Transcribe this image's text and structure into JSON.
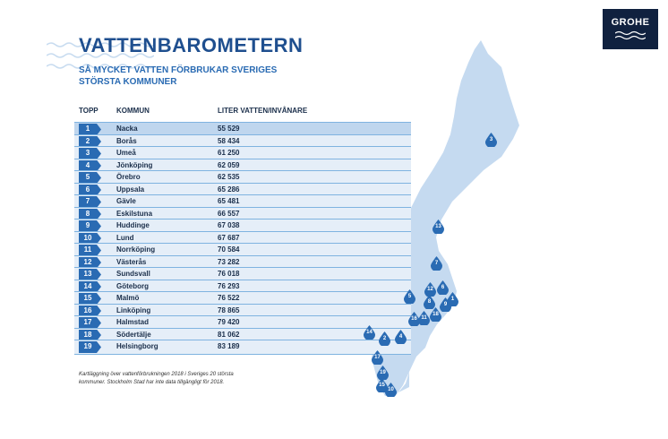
{
  "title": "VATTENBAROMETERN",
  "subtitle": "SÅ MYCKET VATTEN FÖRBRUKAR SVERIGES STÖRSTA KOMMUNER",
  "logo": "GROHE",
  "columns": {
    "top": "TOPP",
    "kommun": "KOMMUN",
    "liter": "LITER VATTEN/INVÅNARE"
  },
  "rows": [
    {
      "rank": "1",
      "city": "Nacka",
      "value": "55 529"
    },
    {
      "rank": "2",
      "city": "Borås",
      "value": "58 434"
    },
    {
      "rank": "3",
      "city": "Umeå",
      "value": "61 250"
    },
    {
      "rank": "4",
      "city": "Jönköping",
      "value": "62 059"
    },
    {
      "rank": "5",
      "city": "Örebro",
      "value": "62 535"
    },
    {
      "rank": "6",
      "city": "Uppsala",
      "value": "65 286"
    },
    {
      "rank": "7",
      "city": "Gävle",
      "value": "65 481"
    },
    {
      "rank": "8",
      "city": "Eskilstuna",
      "value": "66 557"
    },
    {
      "rank": "9",
      "city": "Huddinge",
      "value": "67 038"
    },
    {
      "rank": "10",
      "city": "Lund",
      "value": "67 687"
    },
    {
      "rank": "11",
      "city": "Norrköping",
      "value": "70 584"
    },
    {
      "rank": "12",
      "city": "Västerås",
      "value": "73 282"
    },
    {
      "rank": "13",
      "city": "Sundsvall",
      "value": "76 018"
    },
    {
      "rank": "14",
      "city": "Göteborg",
      "value": "76 293"
    },
    {
      "rank": "15",
      "city": "Malmö",
      "value": "76 522"
    },
    {
      "rank": "16",
      "city": "Linköping",
      "value": "78 865"
    },
    {
      "rank": "17",
      "city": "Halmstad",
      "value": "79 420"
    },
    {
      "rank": "18",
      "city": "Södertälje",
      "value": "81 062"
    },
    {
      "rank": "19",
      "city": "Helsingborg",
      "value": "83 189"
    }
  ],
  "footnote": "Kartläggning över vattenförbrukningen 2018 i Sveriges 20 största kommuner. Stockholm Stad har inte data tillgängligt för 2018.",
  "map_markers": [
    "3",
    "13",
    "7",
    "12",
    "6",
    "5",
    "8",
    "1",
    "9",
    "18",
    "16",
    "11",
    "4",
    "14",
    "2",
    "17",
    "19",
    "15",
    "10"
  ],
  "colors": {
    "accent": "#2a6bb3",
    "title": "#1f4f8f",
    "row_bg": "#e5eef8",
    "map": "#c5daf0",
    "logo_bg": "#10213f"
  }
}
